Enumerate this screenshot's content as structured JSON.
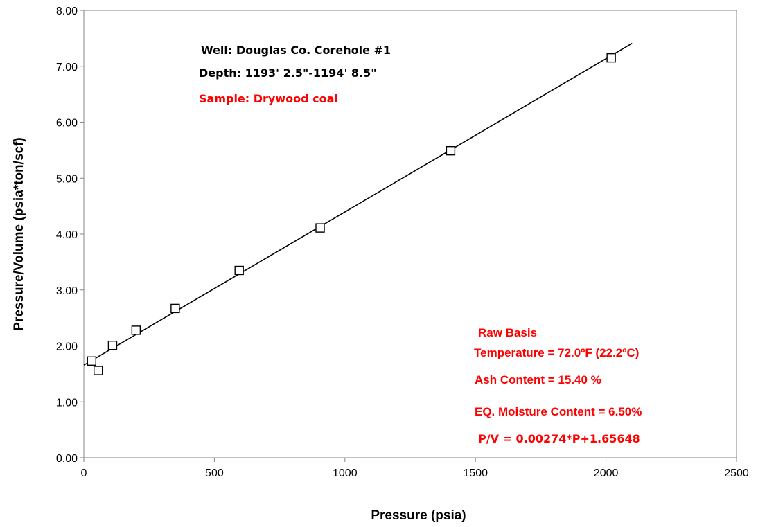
{
  "chart_data": {
    "type": "scatter",
    "title": "",
    "xlabel": "Pressure (psia)",
    "ylabel": "Pressure/Volume (psia*ton/scf)",
    "xlim": [
      0,
      2500
    ],
    "ylim": [
      0,
      8
    ],
    "xticks": [
      "0",
      "500",
      "1000",
      "1500",
      "2000",
      "2500"
    ],
    "yticks": [
      "0.00",
      "1.00",
      "2.00",
      "3.00",
      "4.00",
      "5.00",
      "6.00",
      "7.00",
      "8.00"
    ],
    "grid": false,
    "series": [
      {
        "marker": "open-square",
        "x": [
          30,
          55,
          110,
          200,
          350,
          595,
          905,
          1405,
          2020
        ],
        "y": [
          1.73,
          1.56,
          2.01,
          2.28,
          2.67,
          3.35,
          4.11,
          5.49,
          7.15
        ]
      }
    ],
    "fit_line": {
      "slope": 0.00274,
      "intercept": 1.65648,
      "x_range": [
        0,
        2100
      ]
    },
    "annotations": {
      "well": "Well: Douglas Co. Corehole #1",
      "depth": "Depth: 1193' 2.5\"-1194' 8.5\"",
      "sample": "Sample: Drywood coal",
      "basis": "Raw Basis",
      "temperature": "Temperature = 72.0ºF (22.2ºC)",
      "ash": "Ash Content = 15.40 %",
      "moisture": "EQ. Moisture Content = 6.50%",
      "equation": "P/V = 0.00274*P+1.65648"
    },
    "colors": {
      "annotation_black": "#000000",
      "annotation_red": "#ff0000",
      "axis": "#868686"
    }
  }
}
